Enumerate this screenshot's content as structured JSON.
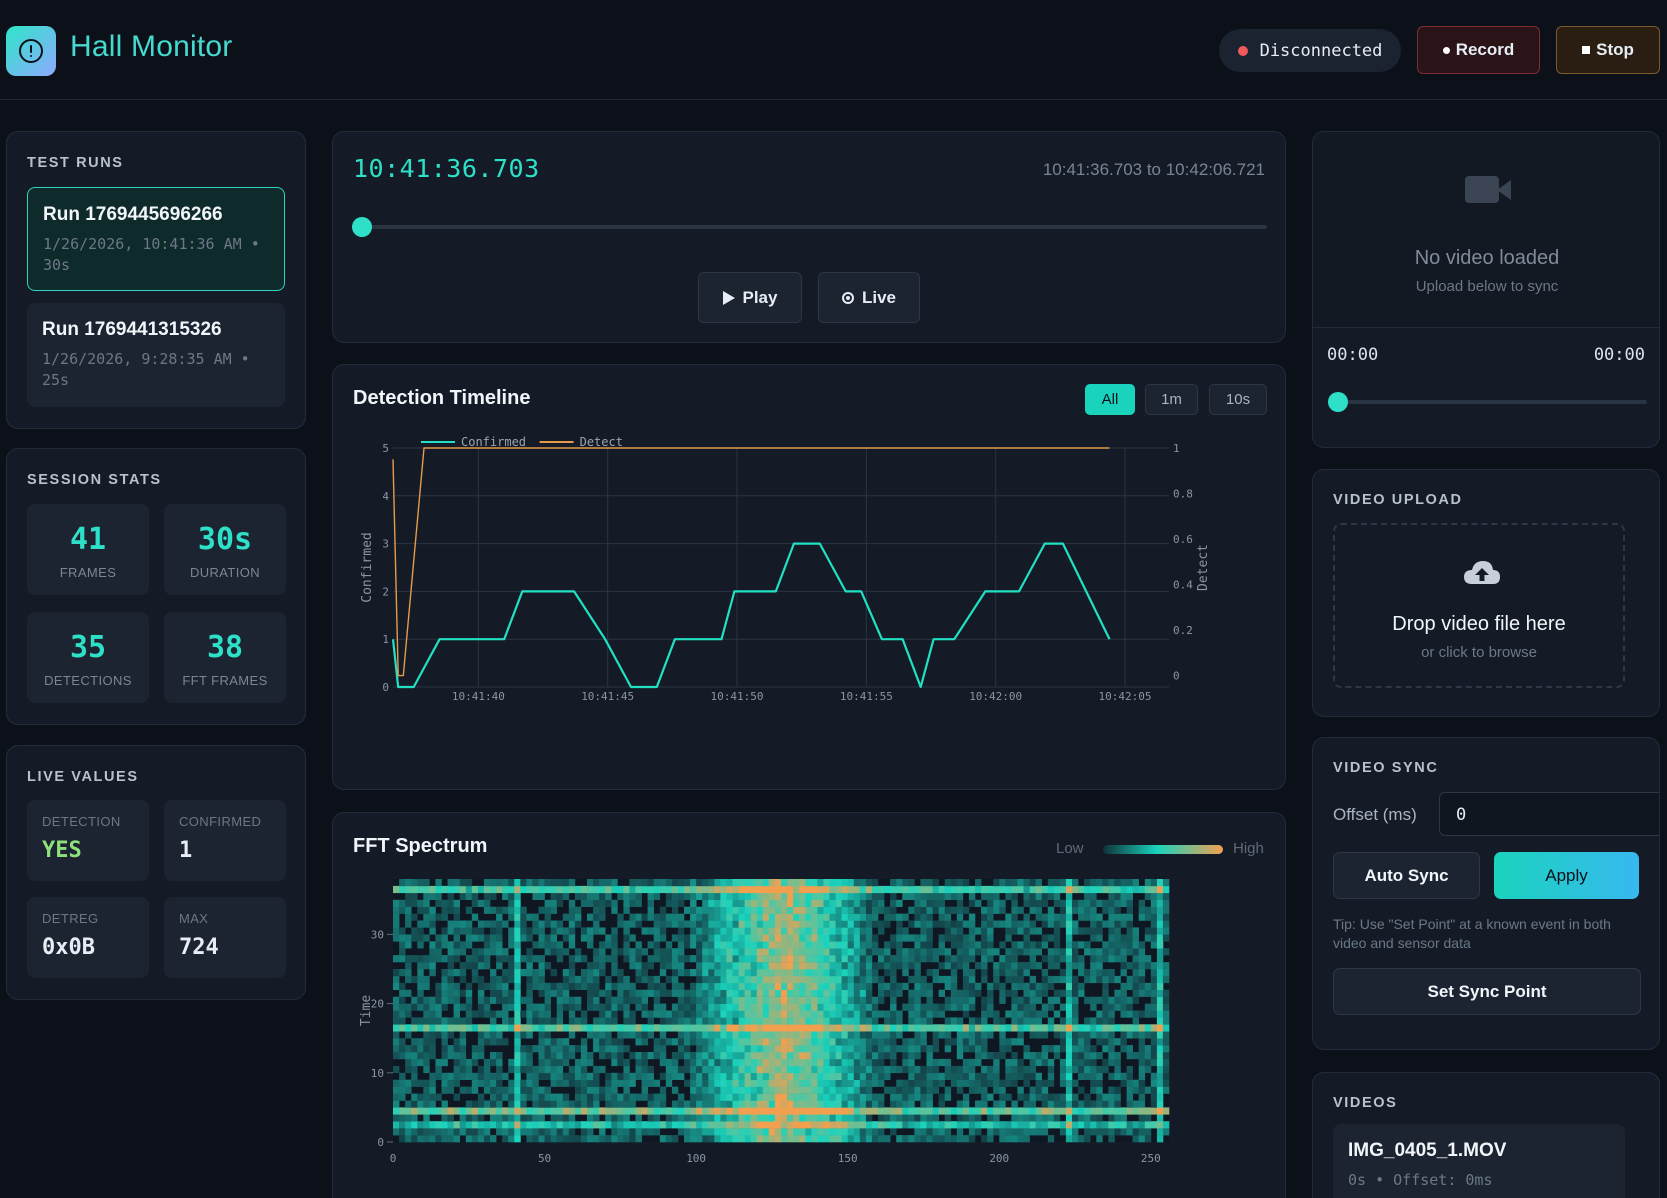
{
  "header": {
    "title": "Hall Monitor",
    "status": "Disconnected",
    "record_label": "Record",
    "stop_label": "Stop",
    "colors": {
      "accent": "#2ee0c8",
      "status_disconnected": "#ef5a5a"
    }
  },
  "test_runs": {
    "title": "TEST RUNS",
    "items": [
      {
        "name": "Run 1769445696266",
        "meta": "1/26/2026, 10:41:36 AM • 30s",
        "active": true
      },
      {
        "name": "Run 1769441315326",
        "meta": "1/26/2026, 9:28:35 AM • 25s",
        "active": false
      }
    ]
  },
  "session_stats": {
    "title": "SESSION STATS",
    "items": [
      {
        "value": "41",
        "label": "FRAMES"
      },
      {
        "value": "30s",
        "label": "DURATION"
      },
      {
        "value": "35",
        "label": "DETECTIONS"
      },
      {
        "value": "38",
        "label": "FFT FRAMES"
      }
    ]
  },
  "live_values": {
    "title": "LIVE VALUES",
    "items": [
      {
        "label": "DETECTION",
        "value": "YES"
      },
      {
        "label": "CONFIRMED",
        "value": "1"
      },
      {
        "label": "DETREG",
        "value": "0x0B"
      },
      {
        "label": "MAX",
        "value": "724"
      }
    ]
  },
  "player": {
    "current_time": "10:41:36.703",
    "range": "10:41:36.703 to 10:42:06.721",
    "position": 0.0,
    "play_label": "Play",
    "live_label": "Live"
  },
  "detection_timeline": {
    "title": "Detection Timeline",
    "ranges": [
      {
        "label": "All",
        "active": true
      },
      {
        "label": "1m",
        "active": false
      },
      {
        "label": "10s",
        "active": false
      }
    ]
  },
  "fft_spectrum": {
    "title": "FFT Spectrum",
    "legend_low": "Low",
    "legend_high": "High"
  },
  "chart_data": [
    {
      "type": "line",
      "x_ticks": [
        "10:41:40",
        "10:41:45",
        "10:41:50",
        "10:41:55",
        "10:42:00",
        "10:42:05"
      ],
      "xlim": [
        "10:41:36.7",
        "10:42:06.7"
      ],
      "ylabel": "Confirmed",
      "y2label": "Detect",
      "ylim": [
        0,
        5
      ],
      "y_ticks": [
        "0",
        "1",
        "2",
        "3",
        "4",
        "5"
      ],
      "y2lim": [
        -0.05,
        1.0
      ],
      "y2_ticks": [
        "0",
        "0.2",
        "0.4",
        "0.6",
        "0.8",
        "1"
      ],
      "legend_position": "top-left",
      "grid": true,
      "series": [
        {
          "name": "Confirmed",
          "color": "#22e0c4",
          "axis": "left",
          "x": [
            36.7,
            36.9,
            37.5,
            38.5,
            41.0,
            41.7,
            43.7,
            44.9,
            45.9,
            46.9,
            47.6,
            49.4,
            49.9,
            51.5,
            52.2,
            53.2,
            54.2,
            54.8,
            55.6,
            56.4,
            57.1,
            57.6,
            58.4,
            59.6,
            60.9,
            61.9,
            62.6,
            64.4
          ],
          "y": [
            1,
            0,
            0,
            1,
            1,
            2,
            2,
            1,
            0,
            0,
            1,
            1,
            2,
            2,
            3,
            3,
            2,
            2,
            1,
            1,
            0,
            1,
            1,
            2,
            2,
            3,
            3,
            1
          ]
        },
        {
          "name": "Detect",
          "color": "#e59a4c",
          "axis": "right",
          "x": [
            36.7,
            36.9,
            37.1,
            37.9,
            64.4
          ],
          "y": [
            0.95,
            0.0,
            0.0,
            1.0,
            1.0
          ]
        }
      ]
    },
    {
      "type": "heatmap",
      "xlabel": "",
      "ylabel": "Time",
      "x_ticks": [
        "0",
        "50",
        "100",
        "150",
        "200",
        "250"
      ],
      "xlim": [
        0,
        256
      ],
      "y_ticks": [
        "0",
        "10",
        "20",
        "30"
      ],
      "ylim": [
        0,
        38
      ],
      "color_low": "#0f1f2a",
      "color_high": "#f2a050",
      "hot_band_center": 128
    }
  ],
  "video": {
    "no_video": "No video loaded",
    "upload_hint": "Upload below to sync",
    "time_start": "00:00",
    "time_end": "00:00"
  },
  "video_upload": {
    "title": "VIDEO UPLOAD",
    "drop_text": "Drop video file here",
    "browse_text": "or click to browse"
  },
  "video_sync": {
    "title": "VIDEO SYNC",
    "offset_label": "Offset (ms)",
    "offset_value": "0",
    "auto_sync": "Auto Sync",
    "apply": "Apply",
    "tip": "Tip: Use \"Set Point\" at a known event in both video and sensor data",
    "set_sync": "Set Sync Point"
  },
  "videos": {
    "title": "VIDEOS",
    "items": [
      {
        "name": "IMG_0405_1.MOV",
        "meta": "0s • Offset: 0ms"
      }
    ]
  }
}
